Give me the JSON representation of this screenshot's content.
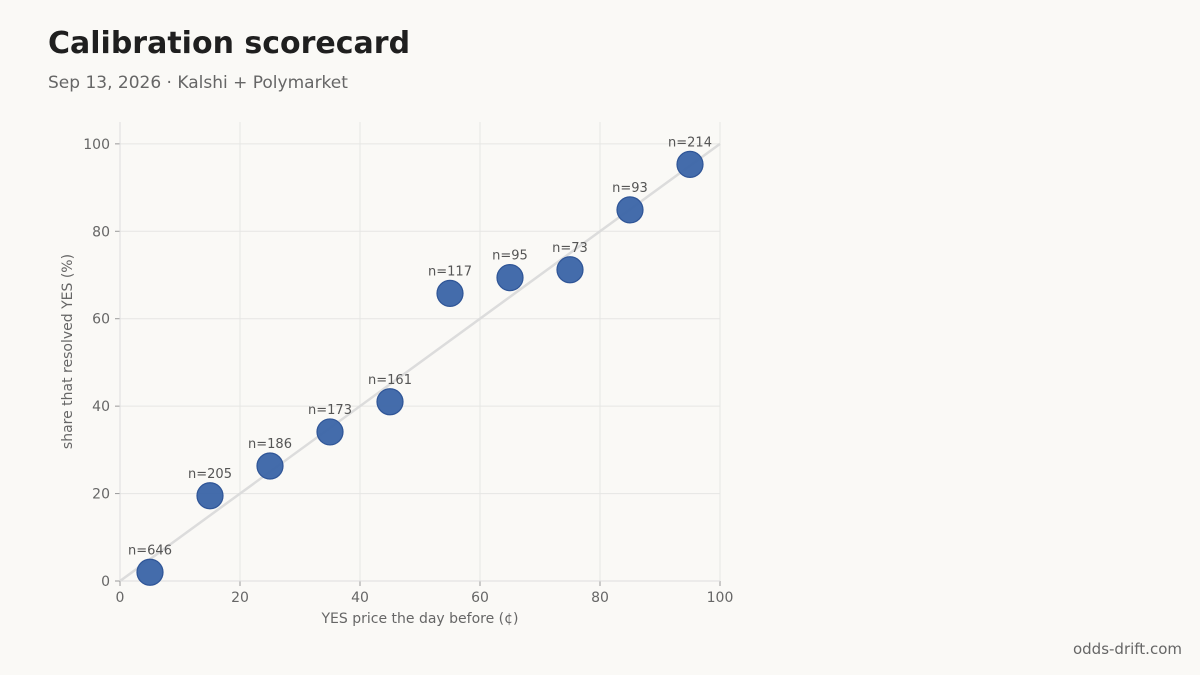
{
  "header": {
    "title": "Calibration scorecard",
    "subtitle": "Sep 13, 2026 · Kalshi + Polymarket"
  },
  "footer": {
    "source": "odds-drift.com"
  },
  "colors": {
    "point": "#3a64a6",
    "point_stroke": "#2f5597",
    "diagonal": "#dcdcdc",
    "grid": "#e6e6e4",
    "axis_text": "#666666"
  },
  "chart_data": {
    "type": "scatter",
    "xlabel": "YES price the day before (¢)",
    "ylabel": "share that resolved YES (%)",
    "xlim": [
      0,
      100
    ],
    "ylim": [
      0,
      105
    ],
    "xticks": [
      0,
      20,
      40,
      60,
      80,
      100
    ],
    "yticks": [
      0,
      20,
      40,
      60,
      80,
      100
    ],
    "grid": true,
    "reference_line": {
      "from": [
        0,
        0
      ],
      "to": [
        100,
        100
      ]
    },
    "points": [
      {
        "x": 5,
        "y": 2.0,
        "label": "n=646"
      },
      {
        "x": 15,
        "y": 19.5,
        "label": "n=205"
      },
      {
        "x": 25,
        "y": 26.3,
        "label": "n=186"
      },
      {
        "x": 35,
        "y": 34.1,
        "label": "n=173"
      },
      {
        "x": 45,
        "y": 41.0,
        "label": "n=161"
      },
      {
        "x": 55,
        "y": 65.8,
        "label": "n=117"
      },
      {
        "x": 65,
        "y": 69.4,
        "label": "n=95"
      },
      {
        "x": 75,
        "y": 71.2,
        "label": "n=73"
      },
      {
        "x": 85,
        "y": 84.9,
        "label": "n=93"
      },
      {
        "x": 95,
        "y": 95.3,
        "label": "n=214"
      }
    ]
  }
}
